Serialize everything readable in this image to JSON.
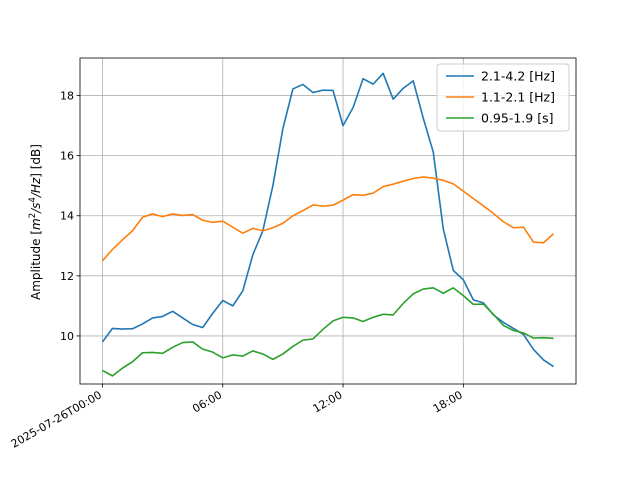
{
  "chart_data": {
    "type": "line",
    "x_unit": "hours",
    "x": [
      0,
      0.5,
      1,
      1.5,
      2,
      2.5,
      3,
      3.5,
      4,
      4.5,
      5,
      5.5,
      6,
      6.5,
      7,
      7.5,
      8,
      8.5,
      9,
      9.5,
      10,
      10.5,
      11,
      11.5,
      12,
      12.5,
      13,
      13.5,
      14,
      14.5,
      15,
      15.5,
      16,
      16.5,
      17,
      17.5,
      18,
      18.5,
      19,
      19.5,
      20,
      20.5,
      21,
      21.5,
      22,
      22.5
    ],
    "series": [
      {
        "name": "2.1-4.2 [Hz]",
        "color": "#1f77b4",
        "values": [
          9.8,
          10.25,
          10.23,
          10.24,
          10.4,
          10.6,
          10.65,
          10.82,
          10.6,
          10.38,
          10.28,
          10.75,
          11.18,
          11.0,
          11.5,
          12.7,
          13.5,
          15.0,
          16.9,
          18.22,
          18.37,
          18.1,
          18.18,
          18.17,
          17.0,
          17.6,
          18.56,
          18.38,
          18.74,
          17.88,
          18.24,
          18.49,
          17.25,
          16.12,
          13.56,
          12.18,
          11.87,
          11.2,
          11.1,
          10.7,
          10.45,
          10.25,
          10.05,
          9.55,
          9.2,
          8.98
        ]
      },
      {
        "name": "1.1-2.1 [Hz]",
        "color": "#ff7f0e",
        "values": [
          12.5,
          12.88,
          13.2,
          13.5,
          13.95,
          14.06,
          13.97,
          14.06,
          14.01,
          14.04,
          13.85,
          13.78,
          13.82,
          13.62,
          13.42,
          13.58,
          13.5,
          13.6,
          13.75,
          14.0,
          14.17,
          14.36,
          14.32,
          14.35,
          14.52,
          14.7,
          14.68,
          14.75,
          14.97,
          15.05,
          15.15,
          15.24,
          15.29,
          15.25,
          15.18,
          15.06,
          14.82,
          14.57,
          14.33,
          14.08,
          13.8,
          13.6,
          13.62,
          13.12,
          13.1,
          13.4
        ]
      },
      {
        "name": "0.95-1.9 [s]",
        "color": "#2ca02c",
        "values": [
          8.85,
          8.67,
          8.93,
          9.14,
          9.44,
          9.45,
          9.42,
          9.62,
          9.78,
          9.8,
          9.56,
          9.46,
          9.27,
          9.37,
          9.33,
          9.5,
          9.4,
          9.22,
          9.4,
          9.65,
          9.86,
          9.9,
          10.22,
          10.5,
          10.62,
          10.6,
          10.48,
          10.62,
          10.72,
          10.7,
          11.08,
          11.4,
          11.56,
          11.6,
          11.42,
          11.6,
          11.34,
          11.05,
          11.06,
          10.72,
          10.35,
          10.18,
          10.1,
          9.93,
          9.94,
          9.92
        ]
      }
    ],
    "xticks": [
      {
        "value": 0,
        "label": "2025-07-26T00:00"
      },
      {
        "value": 6,
        "label": "06:00"
      },
      {
        "value": 12,
        "label": "12:00"
      },
      {
        "value": 18,
        "label": "18:00"
      }
    ],
    "yticks": [
      10,
      12,
      14,
      16,
      18
    ],
    "ylabel": "Amplitude [m²/s⁴/Hz] [dB]",
    "ylabel_parts": {
      "before": "Amplitude [",
      "m": "m",
      "exp2": "2",
      "slash1": "/",
      "s": "s",
      "exp4": "4",
      "slash2": "/",
      "hz": "Hz",
      "after": "] [dB]"
    },
    "xlim": [
      -1.12,
      23.62
    ],
    "ylim": [
      8.4,
      19.25
    ],
    "grid": true,
    "legend_position": "top-right"
  }
}
